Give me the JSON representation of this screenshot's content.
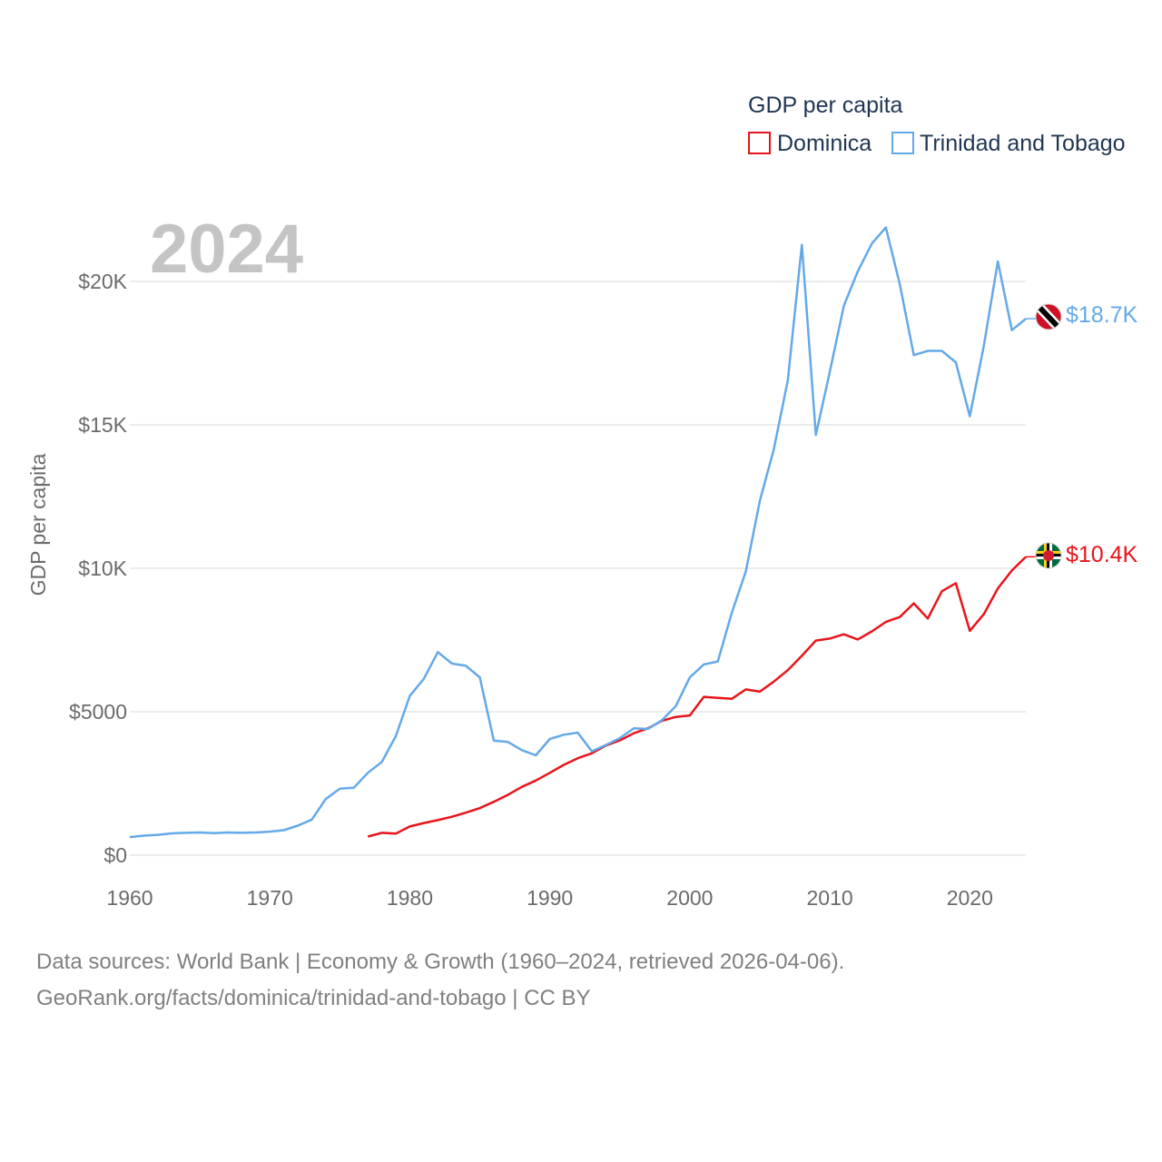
{
  "chart_data": {
    "type": "line",
    "title": "",
    "year_label": "2024",
    "xlabel": "",
    "ylabel": "GDP per capita",
    "xlim": [
      1960,
      2024
    ],
    "ylim": [
      0,
      22000
    ],
    "x_ticks": [
      1960,
      1970,
      1980,
      1990,
      2000,
      2010,
      2020
    ],
    "x_tick_labels": [
      "1960",
      "1970",
      "1980",
      "1990",
      "2000",
      "2010",
      "2020"
    ],
    "y_ticks": [
      0,
      5000,
      10000,
      15000,
      20000
    ],
    "y_tick_labels": [
      "$0",
      "$5000",
      "$10K",
      "$15K",
      "$20K"
    ],
    "legend": {
      "title": "GDP per capita",
      "placement": "top-right",
      "entries": [
        {
          "name": "Dominica",
          "color": "#e8141a"
        },
        {
          "name": "Trinidad and Tobago",
          "color": "#64a9e8"
        }
      ]
    },
    "series": [
      {
        "name": "Dominica",
        "color": "#e8141a",
        "end_label": "$10.4K",
        "flag_icon": "dominica-flag-icon",
        "x": [
          1977,
          1978,
          1979,
          1980,
          1981,
          1982,
          1983,
          1984,
          1985,
          1986,
          1987,
          1988,
          1989,
          1990,
          1991,
          1992,
          1993,
          1994,
          1995,
          1996,
          1997,
          1998,
          1999,
          2000,
          2001,
          2002,
          2003,
          2004,
          2005,
          2006,
          2007,
          2008,
          2009,
          2010,
          2011,
          2012,
          2013,
          2014,
          2015,
          2016,
          2017,
          2018,
          2019,
          2020,
          2021,
          2022,
          2023,
          2024
        ],
        "values": [
          650,
          780,
          750,
          1000,
          1120,
          1220,
          1340,
          1480,
          1640,
          1860,
          2100,
          2380,
          2600,
          2870,
          3150,
          3380,
          3550,
          3820,
          4000,
          4250,
          4420,
          4680,
          4820,
          4870,
          5520,
          5480,
          5450,
          5780,
          5700,
          6050,
          6450,
          6950,
          7480,
          7550,
          7700,
          7520,
          7800,
          8130,
          8300,
          8780,
          8250,
          9200,
          9480,
          7820,
          8400,
          9300,
          9920,
          10400
        ]
      },
      {
        "name": "Trinidad and Tobago",
        "color": "#64a9e8",
        "end_label": "$18.7K",
        "flag_icon": "trinidad-flag-icon",
        "x": [
          1960,
          1961,
          1962,
          1963,
          1964,
          1965,
          1966,
          1967,
          1968,
          1969,
          1970,
          1971,
          1972,
          1973,
          1974,
          1975,
          1976,
          1977,
          1978,
          1979,
          1980,
          1981,
          1982,
          1983,
          1984,
          1985,
          1986,
          1987,
          1988,
          1989,
          1990,
          1991,
          1992,
          1993,
          1994,
          1995,
          1996,
          1997,
          1998,
          1999,
          2000,
          2001,
          2002,
          2003,
          2004,
          2005,
          2006,
          2007,
          2008,
          2009,
          2010,
          2011,
          2012,
          2013,
          2014,
          2015,
          2016,
          2017,
          2018,
          2019,
          2020,
          2021,
          2022,
          2023,
          2024
        ],
        "values": [
          630,
          680,
          710,
          760,
          780,
          790,
          770,
          790,
          780,
          790,
          820,
          870,
          1030,
          1240,
          1960,
          2320,
          2350,
          2870,
          3250,
          4150,
          5550,
          6150,
          7080,
          6680,
          6600,
          6200,
          3990,
          3950,
          3660,
          3480,
          4050,
          4200,
          4270,
          3620,
          3840,
          4080,
          4420,
          4400,
          4700,
          5200,
          6200,
          6650,
          6750,
          8450,
          9900,
          12350,
          14150,
          16550,
          21280,
          14650,
          16850,
          19150,
          20350,
          21320,
          21880,
          19900,
          17430,
          17580,
          17580,
          17180,
          15300,
          17750,
          20700,
          18300,
          18700
        ]
      }
    ]
  },
  "footer": {
    "line1": "Data sources: World Bank | Economy & Growth (1960–2024, retrieved 2026-04-06).",
    "line2": "GeoRank.org/facts/dominica/trinidad-and-tobago | CC BY"
  }
}
